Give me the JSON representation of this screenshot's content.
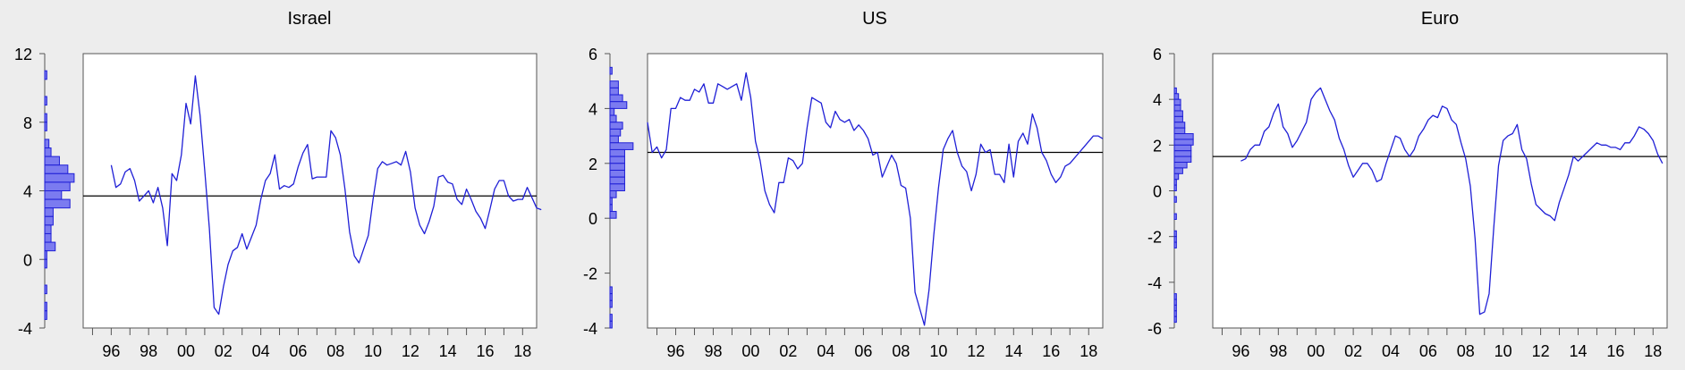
{
  "figure": {
    "background": "#ededed",
    "plot_background": "#ffffff",
    "line_color": "#1f1fd6",
    "hist_fill": "#7b7bf0",
    "hist_stroke": "#1f1fd6",
    "mean_line_color": "#000000"
  },
  "chart_data": [
    {
      "type": "line",
      "title": "Israel",
      "xlabel": "",
      "ylabel": "",
      "xlim": [
        1994.5,
        2018.75
      ],
      "ylim": [
        -4,
        12
      ],
      "yticks": [
        -4,
        0,
        4,
        8,
        12
      ],
      "xticks": [
        {
          "x": 1996,
          "label": "96"
        },
        {
          "x": 1998,
          "label": "98"
        },
        {
          "x": 2000,
          "label": "00"
        },
        {
          "x": 2002,
          "label": "02"
        },
        {
          "x": 2004,
          "label": "04"
        },
        {
          "x": 2006,
          "label": "06"
        },
        {
          "x": 2008,
          "label": "08"
        },
        {
          "x": 2010,
          "label": "10"
        },
        {
          "x": 2012,
          "label": "12"
        },
        {
          "x": 2014,
          "label": "14"
        },
        {
          "x": 2016,
          "label": "16"
        },
        {
          "x": 2018,
          "label": "18"
        }
      ],
      "mean": 3.7,
      "x_start": 1996.0,
      "step": 0.25,
      "values": [
        5.5,
        4.2,
        4.4,
        5.1,
        5.3,
        4.6,
        3.4,
        3.7,
        4.0,
        3.3,
        4.2,
        3.0,
        0.8,
        5.0,
        4.6,
        6.1,
        9.1,
        7.9,
        10.7,
        8.4,
        5.2,
        1.8,
        -2.8,
        -3.2,
        -1.6,
        -0.3,
        0.5,
        0.7,
        1.5,
        0.6,
        1.3,
        2.0,
        3.5,
        4.6,
        5.0,
        6.1,
        4.1,
        4.3,
        4.2,
        4.4,
        5.4,
        6.2,
        6.7,
        4.7,
        4.8,
        4.8,
        4.8,
        7.5,
        7.1,
        6.1,
        4.1,
        1.6,
        0.2,
        -0.2,
        0.6,
        1.4,
        3.5,
        5.3,
        5.7,
        5.5,
        5.6,
        5.7,
        5.5,
        6.3,
        5.1,
        3.0,
        2.0,
        1.5,
        2.2,
        3.1,
        4.8,
        4.9,
        4.5,
        4.4,
        3.5,
        3.2,
        4.1,
        3.5,
        2.8,
        2.4,
        1.8,
        2.9,
        4.1,
        4.6,
        4.6,
        3.7,
        3.4,
        3.5,
        3.5,
        4.2,
        3.6,
        3.0,
        2.9
      ],
      "histogram": {
        "bin_width": 0.5,
        "bins": [
          {
            "from": 10.5,
            "to": 11.0,
            "count": 1
          },
          {
            "from": 9.0,
            "to": 9.5,
            "count": 1
          },
          {
            "from": 8.0,
            "to": 8.5,
            "count": 1
          },
          {
            "from": 7.5,
            "to": 8.0,
            "count": 1
          },
          {
            "from": 6.5,
            "to": 7.0,
            "count": 2
          },
          {
            "from": 6.0,
            "to": 6.5,
            "count": 3
          },
          {
            "from": 5.5,
            "to": 6.0,
            "count": 7
          },
          {
            "from": 5.0,
            "to": 5.5,
            "count": 11
          },
          {
            "from": 4.5,
            "to": 5.0,
            "count": 14
          },
          {
            "from": 4.0,
            "to": 4.5,
            "count": 12
          },
          {
            "from": 3.5,
            "to": 4.0,
            "count": 8
          },
          {
            "from": 3.0,
            "to": 3.5,
            "count": 12
          },
          {
            "from": 2.5,
            "to": 3.0,
            "count": 4
          },
          {
            "from": 2.0,
            "to": 2.5,
            "count": 4
          },
          {
            "from": 1.5,
            "to": 2.0,
            "count": 3
          },
          {
            "from": 1.0,
            "to": 1.5,
            "count": 3
          },
          {
            "from": 0.5,
            "to": 1.0,
            "count": 5
          },
          {
            "from": 0.0,
            "to": 0.5,
            "count": 1
          },
          {
            "from": -0.5,
            "to": 0.0,
            "count": 1
          },
          {
            "from": -2.0,
            "to": -1.5,
            "count": 1
          },
          {
            "from": -3.0,
            "to": -2.5,
            "count": 1
          },
          {
            "from": -3.5,
            "to": -3.0,
            "count": 1
          }
        ]
      }
    },
    {
      "type": "line",
      "title": "US",
      "xlabel": "",
      "ylabel": "",
      "xlim": [
        1994.5,
        2018.75
      ],
      "ylim": [
        -4,
        6
      ],
      "yticks": [
        -4,
        -2,
        0,
        2,
        4,
        6
      ],
      "xticks": [
        {
          "x": 1996,
          "label": "96"
        },
        {
          "x": 1998,
          "label": "98"
        },
        {
          "x": 2000,
          "label": "00"
        },
        {
          "x": 2002,
          "label": "02"
        },
        {
          "x": 2004,
          "label": "04"
        },
        {
          "x": 2006,
          "label": "06"
        },
        {
          "x": 2008,
          "label": "08"
        },
        {
          "x": 2010,
          "label": "10"
        },
        {
          "x": 2012,
          "label": "12"
        },
        {
          "x": 2014,
          "label": "14"
        },
        {
          "x": 2016,
          "label": "16"
        },
        {
          "x": 2018,
          "label": "18"
        }
      ],
      "mean": 2.4,
      "x_start": 1994.5,
      "step": 0.25,
      "values": [
        3.5,
        2.4,
        2.6,
        2.2,
        2.5,
        4.0,
        4.0,
        4.4,
        4.3,
        4.3,
        4.7,
        4.6,
        4.9,
        4.2,
        4.2,
        4.9,
        4.8,
        4.7,
        4.8,
        4.9,
        4.3,
        5.3,
        4.4,
        2.8,
        2.1,
        1.0,
        0.5,
        0.2,
        1.3,
        1.3,
        2.2,
        2.1,
        1.8,
        2.0,
        3.3,
        4.4,
        4.3,
        4.2,
        3.5,
        3.3,
        3.9,
        3.6,
        3.5,
        3.6,
        3.2,
        3.4,
        3.2,
        2.9,
        2.3,
        2.4,
        1.5,
        1.9,
        2.3,
        2.0,
        1.2,
        1.1,
        0.0,
        -2.7,
        -3.3,
        -3.9,
        -2.6,
        -0.6,
        1.1,
        2.5,
        2.9,
        3.2,
        2.4,
        1.9,
        1.7,
        1.0,
        1.6,
        2.7,
        2.4,
        2.5,
        1.6,
        1.6,
        1.3,
        2.7,
        1.5,
        2.8,
        3.1,
        2.7,
        3.8,
        3.3,
        2.4,
        2.1,
        1.6,
        1.3,
        1.5,
        1.9,
        2.0,
        2.2,
        2.4,
        2.6,
        2.8,
        3.0,
        3.0,
        2.9
      ],
      "histogram": {
        "bin_width": 0.25,
        "bins": [
          {
            "from": 5.25,
            "to": 5.5,
            "count": 1
          },
          {
            "from": 4.75,
            "to": 5.0,
            "count": 4
          },
          {
            "from": 4.5,
            "to": 4.75,
            "count": 4
          },
          {
            "from": 4.25,
            "to": 4.5,
            "count": 6
          },
          {
            "from": 4.0,
            "to": 4.25,
            "count": 8
          },
          {
            "from": 3.75,
            "to": 4.0,
            "count": 2
          },
          {
            "from": 3.5,
            "to": 3.75,
            "count": 3
          },
          {
            "from": 3.25,
            "to": 3.5,
            "count": 6
          },
          {
            "from": 3.0,
            "to": 3.25,
            "count": 5
          },
          {
            "from": 2.75,
            "to": 3.0,
            "count": 4
          },
          {
            "from": 2.5,
            "to": 2.75,
            "count": 11
          },
          {
            "from": 2.25,
            "to": 2.5,
            "count": 7
          },
          {
            "from": 2.0,
            "to": 2.25,
            "count": 7
          },
          {
            "from": 1.75,
            "to": 2.0,
            "count": 7
          },
          {
            "from": 1.5,
            "to": 1.75,
            "count": 7
          },
          {
            "from": 1.25,
            "to": 1.5,
            "count": 7
          },
          {
            "from": 1.0,
            "to": 1.25,
            "count": 7
          },
          {
            "from": 0.75,
            "to": 1.0,
            "count": 3
          },
          {
            "from": 0.5,
            "to": 0.75,
            "count": 1
          },
          {
            "from": 0.25,
            "to": 0.5,
            "count": 1
          },
          {
            "from": 0.0,
            "to": 0.25,
            "count": 3
          },
          {
            "from": -2.75,
            "to": -2.5,
            "count": 1
          },
          {
            "from": -3.0,
            "to": -2.75,
            "count": 1
          },
          {
            "from": -3.25,
            "to": -3.0,
            "count": 1
          },
          {
            "from": -3.75,
            "to": -3.5,
            "count": 1
          },
          {
            "from": -4.0,
            "to": -3.75,
            "count": 1
          }
        ]
      }
    },
    {
      "type": "line",
      "title": "Euro",
      "xlabel": "",
      "ylabel": "",
      "xlim": [
        1994.5,
        2018.75
      ],
      "ylim": [
        -6,
        6
      ],
      "yticks": [
        -6,
        -4,
        -2,
        0,
        2,
        4,
        6
      ],
      "xticks": [
        {
          "x": 1996,
          "label": "96"
        },
        {
          "x": 1998,
          "label": "98"
        },
        {
          "x": 2000,
          "label": "00"
        },
        {
          "x": 2002,
          "label": "02"
        },
        {
          "x": 2004,
          "label": "04"
        },
        {
          "x": 2006,
          "label": "06"
        },
        {
          "x": 2008,
          "label": "08"
        },
        {
          "x": 2010,
          "label": "10"
        },
        {
          "x": 2012,
          "label": "12"
        },
        {
          "x": 2014,
          "label": "14"
        },
        {
          "x": 2016,
          "label": "16"
        },
        {
          "x": 2018,
          "label": "18"
        }
      ],
      "mean": 1.5,
      "x_start": 1996.0,
      "step": 0.25,
      "values": [
        1.3,
        1.4,
        1.8,
        2.0,
        2.0,
        2.6,
        2.8,
        3.4,
        3.8,
        2.8,
        2.5,
        1.9,
        2.2,
        2.6,
        3.0,
        4.0,
        4.3,
        4.5,
        4.0,
        3.5,
        3.1,
        2.3,
        1.8,
        1.1,
        0.6,
        0.9,
        1.2,
        1.2,
        0.9,
        0.4,
        0.5,
        1.2,
        1.8,
        2.4,
        2.3,
        1.8,
        1.5,
        1.8,
        2.4,
        2.7,
        3.1,
        3.3,
        3.2,
        3.7,
        3.6,
        3.1,
        2.9,
        2.1,
        1.4,
        0.2,
        -2.1,
        -5.4,
        -5.3,
        -4.5,
        -1.6,
        1.1,
        2.2,
        2.4,
        2.5,
        2.9,
        1.8,
        1.4,
        0.3,
        -0.6,
        -0.8,
        -1.0,
        -1.1,
        -1.3,
        -0.5,
        0.1,
        0.7,
        1.5,
        1.3,
        1.5,
        1.7,
        1.9,
        2.1,
        2.0,
        2.0,
        1.9,
        1.9,
        1.8,
        2.1,
        2.1,
        2.4,
        2.8,
        2.7,
        2.5,
        2.2,
        1.6,
        1.2
      ],
      "histogram": {
        "bin_width": 0.25,
        "bins": [
          {
            "from": 4.25,
            "to": 4.5,
            "count": 1
          },
          {
            "from": 4.0,
            "to": 4.25,
            "count": 2
          },
          {
            "from": 3.75,
            "to": 4.0,
            "count": 3
          },
          {
            "from": 3.5,
            "to": 3.75,
            "count": 3
          },
          {
            "from": 3.25,
            "to": 3.5,
            "count": 4
          },
          {
            "from": 3.0,
            "to": 3.25,
            "count": 4
          },
          {
            "from": 2.75,
            "to": 3.0,
            "count": 5
          },
          {
            "from": 2.5,
            "to": 2.75,
            "count": 5
          },
          {
            "from": 2.25,
            "to": 2.5,
            "count": 9
          },
          {
            "from": 2.0,
            "to": 2.25,
            "count": 9
          },
          {
            "from": 1.75,
            "to": 2.0,
            "count": 8
          },
          {
            "from": 1.5,
            "to": 1.75,
            "count": 8
          },
          {
            "from": 1.25,
            "to": 1.5,
            "count": 8
          },
          {
            "from": 1.0,
            "to": 1.25,
            "count": 6
          },
          {
            "from": 0.75,
            "to": 1.0,
            "count": 4
          },
          {
            "from": 0.5,
            "to": 0.75,
            "count": 2
          },
          {
            "from": 0.25,
            "to": 0.5,
            "count": 1
          },
          {
            "from": 0.0,
            "to": 0.25,
            "count": 1
          },
          {
            "from": -0.5,
            "to": -0.25,
            "count": 1
          },
          {
            "from": -1.25,
            "to": -1.0,
            "count": 1
          },
          {
            "from": -2.0,
            "to": -1.75,
            "count": 1
          },
          {
            "from": -2.25,
            "to": -2.0,
            "count": 1
          },
          {
            "from": -2.5,
            "to": -2.25,
            "count": 1
          },
          {
            "from": -4.75,
            "to": -4.5,
            "count": 1
          },
          {
            "from": -5.0,
            "to": -4.75,
            "count": 1
          },
          {
            "from": -5.25,
            "to": -5.0,
            "count": 1
          },
          {
            "from": -5.5,
            "to": -5.25,
            "count": 1
          },
          {
            "from": -5.75,
            "to": -5.5,
            "count": 1
          }
        ]
      }
    }
  ]
}
